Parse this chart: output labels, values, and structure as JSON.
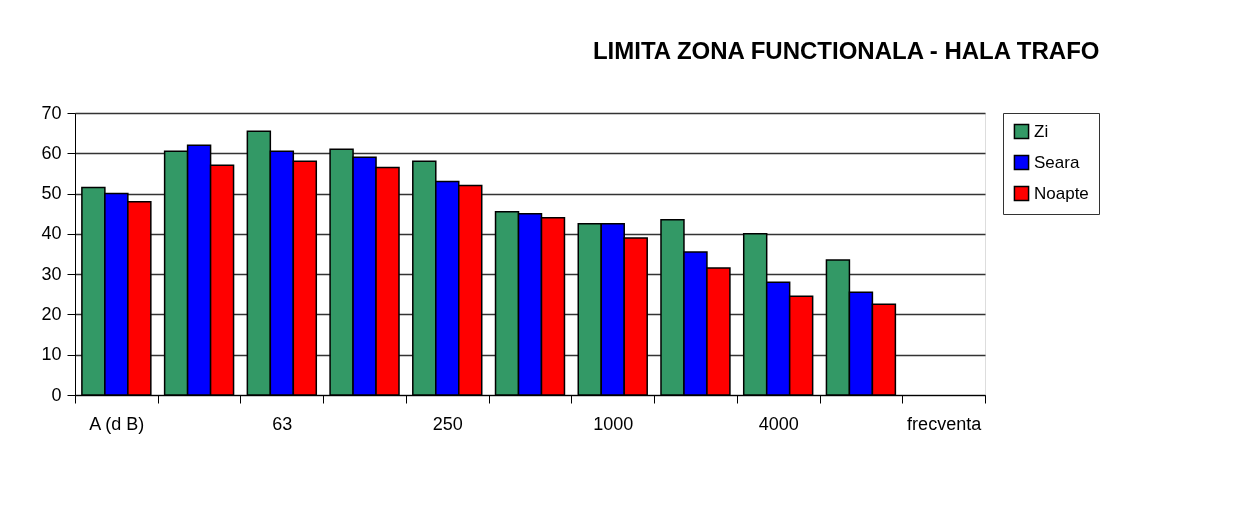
{
  "chart_data": {
    "type": "bar",
    "title": "LIMITA ZONA FUNCTIONALA - HALA TRAFO",
    "categories": [
      "A (d B)",
      null,
      "63",
      null,
      "250",
      null,
      "1000",
      null,
      "4000",
      null,
      "frecventa"
    ],
    "series": [
      {
        "name": "Zi",
        "color": "#339966",
        "values": [
          51.5,
          60.5,
          65.5,
          61,
          58,
          45.5,
          42.5,
          43.5,
          40,
          33.5,
          null
        ]
      },
      {
        "name": "Seara",
        "color": "#0000ff",
        "values": [
          50,
          62,
          60.5,
          59,
          53,
          45,
          42.5,
          35.5,
          28,
          25.5,
          null
        ]
      },
      {
        "name": "Noapte",
        "color": "#ff0000",
        "values": [
          48,
          57,
          58,
          56.5,
          52,
          44,
          39,
          31.5,
          24.5,
          22.5,
          null
        ]
      }
    ],
    "ylim": [
      0,
      70
    ],
    "yticks": [
      0,
      10,
      20,
      30,
      40,
      50,
      60,
      70
    ],
    "grid": "y",
    "legend": "right"
  }
}
